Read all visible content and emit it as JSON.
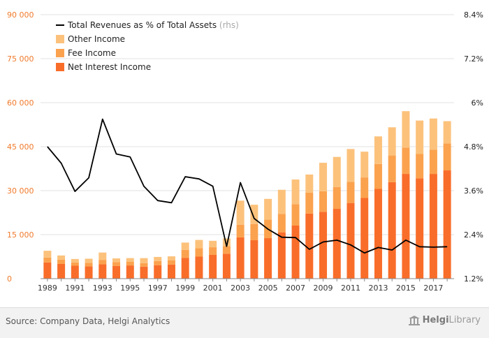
{
  "chart_data": {
    "type": "bar",
    "stacked": true,
    "categories": [
      "1989",
      "1990",
      "1991",
      "1992",
      "1993",
      "1994",
      "1995",
      "1996",
      "1997",
      "1998",
      "1999",
      "2000",
      "2001",
      "2002",
      "2003",
      "2004",
      "2005",
      "2006",
      "2007",
      "2008",
      "2009",
      "2010",
      "2011",
      "2012",
      "2013",
      "2014",
      "2015",
      "2016",
      "2017",
      "2018"
    ],
    "x_tick_labels": [
      "1989",
      "1991",
      "1993",
      "1995",
      "1997",
      "1999",
      "2001",
      "2003",
      "2005",
      "2007",
      "2009",
      "2011",
      "2013",
      "2015",
      "2017"
    ],
    "series": [
      {
        "name": "Net Interest Income",
        "axis": "left",
        "color": "#f96d2a",
        "values": [
          5500,
          5000,
          4400,
          4200,
          4900,
          4300,
          4500,
          4100,
          4600,
          4800,
          7100,
          7500,
          8100,
          8500,
          14100,
          13100,
          13800,
          15800,
          18100,
          22200,
          22800,
          23800,
          25800,
          27500,
          30600,
          32900,
          35700,
          34200,
          35700,
          36900
        ]
      },
      {
        "name": "Fee Income",
        "axis": "left",
        "color": "#fba24e",
        "values": [
          1700,
          1500,
          1100,
          1200,
          1500,
          1300,
          1300,
          1200,
          1400,
          1400,
          2700,
          2900,
          2600,
          2600,
          4300,
          5500,
          6300,
          6300,
          7300,
          7100,
          7000,
          7400,
          7200,
          7000,
          8500,
          9100,
          9000,
          8300,
          8300,
          9200
        ]
      },
      {
        "name": "Other Income",
        "axis": "left",
        "color": "#fcc27c",
        "values": [
          2300,
          1400,
          1200,
          1400,
          2500,
          1300,
          1200,
          1700,
          1400,
          1400,
          2500,
          2800,
          2200,
          2600,
          8200,
          6600,
          7100,
          8200,
          8400,
          6200,
          9700,
          10300,
          11200,
          8800,
          9400,
          9600,
          12400,
          11400,
          10600,
          7600
        ]
      },
      {
        "name": "Total Revenues as % of Total Assets",
        "axis": "right",
        "type": "line",
        "color": "#000000",
        "values": [
          4.8,
          4.35,
          3.58,
          3.95,
          5.55,
          4.6,
          4.52,
          3.72,
          3.33,
          3.27,
          3.98,
          3.92,
          3.72,
          2.08,
          3.82,
          2.84,
          2.55,
          2.33,
          2.32,
          2.0,
          2.2,
          2.25,
          2.12,
          1.9,
          2.05,
          1.98,
          2.25,
          2.07,
          2.06,
          2.07
        ]
      }
    ],
    "y_left": {
      "ticks": [
        "0",
        "15 000",
        "30 000",
        "45 000",
        "60 000",
        "75 000",
        "90 000"
      ],
      "lim": [
        0,
        90000
      ]
    },
    "y_right": {
      "ticks": [
        "1.2%",
        "2.4%",
        "3.6%",
        "4.8%",
        "6%",
        "7.2%",
        "8.4%"
      ],
      "lim": [
        1.2,
        8.4
      ]
    },
    "legend": {
      "position": "top-left",
      "rhs_suffix": "(rhs)"
    },
    "grid": true
  },
  "footer": {
    "source": "Source: Company Data, Helgi Analytics",
    "brand_part1": "Helgi",
    "brand_part2": "Library"
  },
  "colors": {
    "left_axis": "#f07a2a",
    "grid": "#e2e2e2",
    "footer_bg": "#f2f2f2"
  }
}
